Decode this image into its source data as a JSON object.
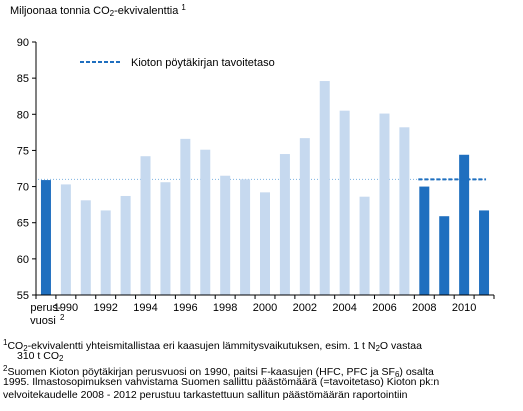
{
  "chart_data": {
    "type": "bar",
    "ylabel_prefix": "Miljoonaa tonnia CO",
    "ylabel_sub": "2",
    "ylabel_suffix": "-ekvivalenttia",
    "ylabel_sup": "1",
    "ylim": [
      55,
      90
    ],
    "yticks": [
      55,
      60,
      65,
      70,
      75,
      80,
      85,
      90
    ],
    "grid": false,
    "categories": [
      "perusvuosi",
      "1990",
      "1991",
      "1992",
      "1993",
      "1994",
      "1995",
      "1996",
      "1997",
      "1998",
      "1999",
      "2000",
      "2001",
      "2002",
      "2003",
      "2004",
      "2005",
      "2006",
      "2007",
      "2008",
      "2009",
      "2010",
      "2011"
    ],
    "xtick_labels": [
      {
        "index": 0,
        "line1": "perus-",
        "line2": "vuosi",
        "sup": "2"
      },
      {
        "index": 1,
        "line1": "1990"
      },
      {
        "index": 3,
        "line1": "1992"
      },
      {
        "index": 5,
        "line1": "1994"
      },
      {
        "index": 7,
        "line1": "1996"
      },
      {
        "index": 9,
        "line1": "1998"
      },
      {
        "index": 11,
        "line1": "2000"
      },
      {
        "index": 13,
        "line1": "2002"
      },
      {
        "index": 15,
        "line1": "2004"
      },
      {
        "index": 17,
        "line1": "2006"
      },
      {
        "index": 19,
        "line1": "2008"
      },
      {
        "index": 21,
        "line1": "2010"
      }
    ],
    "values": [
      70.9,
      70.3,
      68.1,
      66.7,
      68.7,
      74.2,
      70.6,
      76.6,
      75.1,
      71.5,
      71.0,
      69.2,
      74.5,
      76.7,
      84.6,
      80.5,
      68.6,
      80.1,
      78.2,
      70.0,
      65.9,
      74.4,
      66.7
    ],
    "bar_colors": [
      "#1f6fbf",
      "#c6d9ef",
      "#c6d9ef",
      "#c6d9ef",
      "#c6d9ef",
      "#c6d9ef",
      "#c6d9ef",
      "#c6d9ef",
      "#c6d9ef",
      "#c6d9ef",
      "#c6d9ef",
      "#c6d9ef",
      "#c6d9ef",
      "#c6d9ef",
      "#c6d9ef",
      "#c6d9ef",
      "#c6d9ef",
      "#c6d9ef",
      "#c6d9ef",
      "#1f6fbf",
      "#1f6fbf",
      "#1f6fbf",
      "#1f6fbf"
    ],
    "reference_line": {
      "value": 71.0,
      "style": "dotted",
      "color": "#7fb3e0",
      "from_index": 0,
      "to_index": 22
    },
    "target": {
      "name": "Kioton pöytäkirjan tavoitetaso",
      "value": 71.0,
      "style": "dashed",
      "color": "#1f6fbf",
      "from_index": 19,
      "to_index": 22
    },
    "legend": {
      "placement": "top-left"
    }
  },
  "footnotes": {
    "fn1_sup": "1",
    "fn1_line1_a": "CO",
    "fn1_line1_sub": "2",
    "fn1_line1_b": "-ekvivalentti yhteismitallistaa eri kaasujen lämmitysvaikutuksen, esim. 1 t N",
    "fn1_line1_sub2": "2",
    "fn1_line1_c": "O vastaa",
    "fn1_line2_a": "310 t CO",
    "fn1_line2_sub": "2",
    "fn2_sup": "2",
    "fn2_line1_a": "Suomen Kioton pöytäkirjan perusvuosi on 1990, paitsi F-kaasujen (HFC, PFC ja SF",
    "fn2_line1_sub": "6",
    "fn2_line1_b": ") osalta",
    "fn2_line2": "1995. Ilmastosopimuksen vahvistama Suomen sallittu päästömäärä (=tavoitetaso) Kioton pk:n",
    "fn2_line3": "velvoitekaudelle 2008 - 2012 perustuu tarkastettuun sallitun päästömäärän raportointiin"
  }
}
